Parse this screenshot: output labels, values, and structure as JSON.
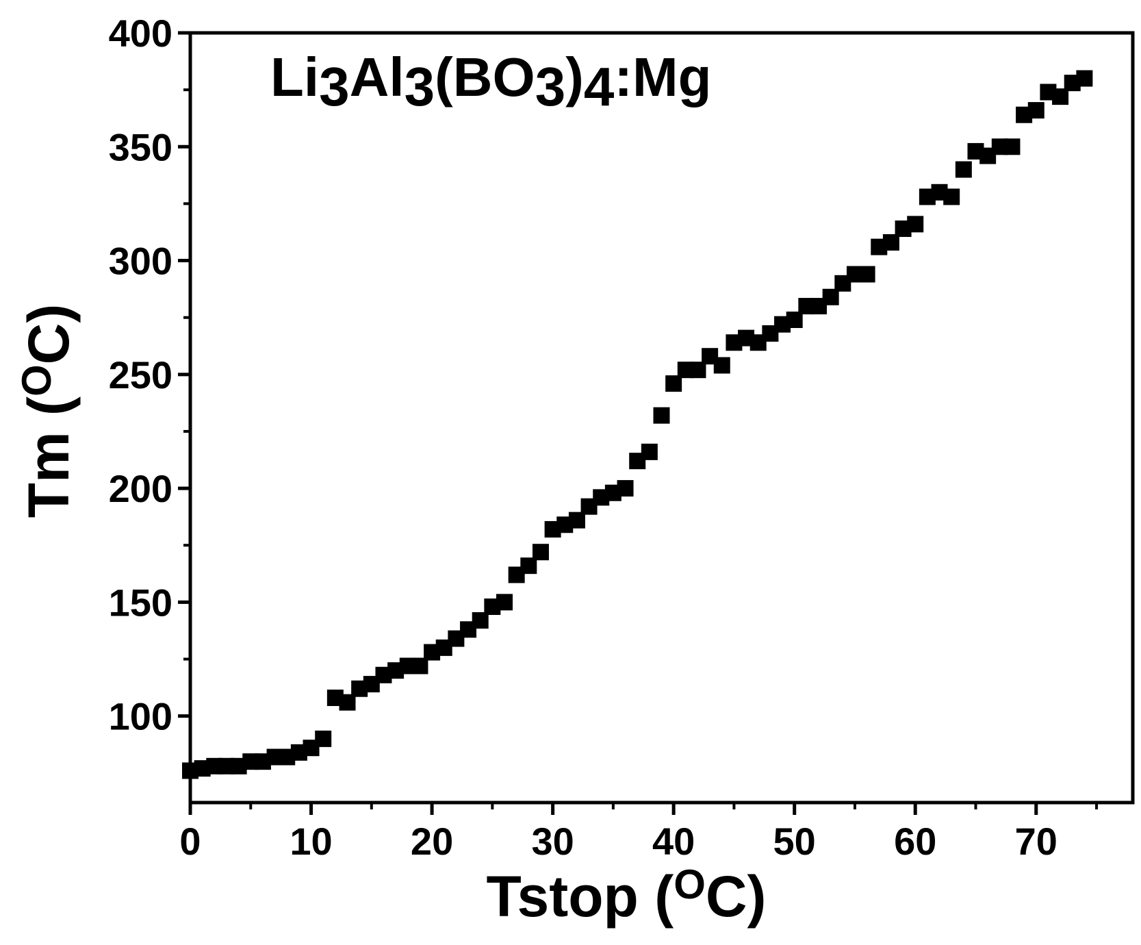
{
  "chart_data": {
    "type": "scatter",
    "title": {
      "prefix": "Li",
      "sub1": "3",
      "mid1": "Al",
      "sub2": "3",
      "mid2": "(BO",
      "sub3": "3",
      "mid3": ")",
      "sub4": "4",
      "suffix": ":Mg"
    },
    "xlabel": {
      "main": "Tstop (",
      "sup": "O",
      "end": "C)"
    },
    "ylabel": {
      "main": "Tm (",
      "sup": "O",
      "end": "C)"
    },
    "xlim": [
      0,
      78
    ],
    "ylim": [
      62,
      400
    ],
    "xticks": [
      0,
      10,
      20,
      30,
      40,
      50,
      60,
      70
    ],
    "yticks": [
      100,
      150,
      200,
      250,
      300,
      350,
      400
    ],
    "marker": "square",
    "marker_color": "#000000",
    "grid": false,
    "series": [
      {
        "x": [
          0,
          1,
          2,
          3,
          4,
          5,
          6,
          7,
          8,
          9,
          10,
          11,
          12,
          13,
          14,
          15,
          16,
          17,
          18,
          19,
          20,
          21,
          22,
          23,
          24,
          25,
          26,
          27,
          28,
          29,
          30,
          31,
          32,
          33,
          34,
          35,
          36,
          37,
          38,
          39,
          40,
          41,
          42,
          43,
          44,
          45,
          46,
          47,
          48,
          49,
          50,
          51,
          52,
          53,
          54,
          55,
          56,
          57,
          58,
          59,
          60,
          61,
          62,
          63,
          64,
          65,
          66,
          67,
          68,
          69,
          70,
          71,
          72,
          73,
          74
        ],
        "y": [
          76,
          77,
          78,
          78,
          78,
          80,
          80,
          82,
          82,
          84,
          86,
          90,
          108,
          106,
          112,
          114,
          118,
          120,
          122,
          122,
          128,
          130,
          134,
          138,
          142,
          148,
          150,
          162,
          166,
          172,
          182,
          184,
          186,
          192,
          196,
          198,
          200,
          212,
          216,
          232,
          246,
          252,
          252,
          258,
          254,
          264,
          266,
          264,
          268,
          272,
          274,
          280,
          280,
          284,
          290,
          294,
          294,
          306,
          308,
          314,
          316,
          328,
          330,
          328,
          340,
          348,
          346,
          350,
          350,
          364,
          366,
          374,
          372,
          378,
          380
        ]
      }
    ]
  }
}
